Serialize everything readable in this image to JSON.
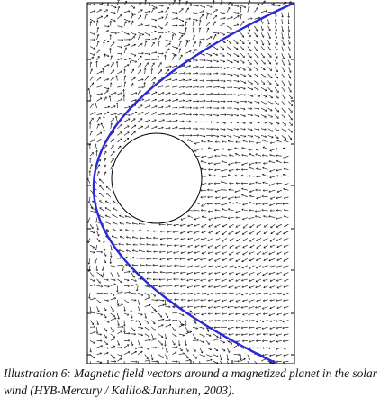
{
  "figure": {
    "caption": "Illustration 6: Magnetic field vectors around a magnetized planet in the solar wind (HYB-Mercury / Kallio&Janhunen, 2003).",
    "colors": {
      "background": "#ffffff",
      "frame": "#000000",
      "vectors": "#000000",
      "bow_shock": "#2a2ad8",
      "planet_fill": "#ffffff"
    }
  }
}
